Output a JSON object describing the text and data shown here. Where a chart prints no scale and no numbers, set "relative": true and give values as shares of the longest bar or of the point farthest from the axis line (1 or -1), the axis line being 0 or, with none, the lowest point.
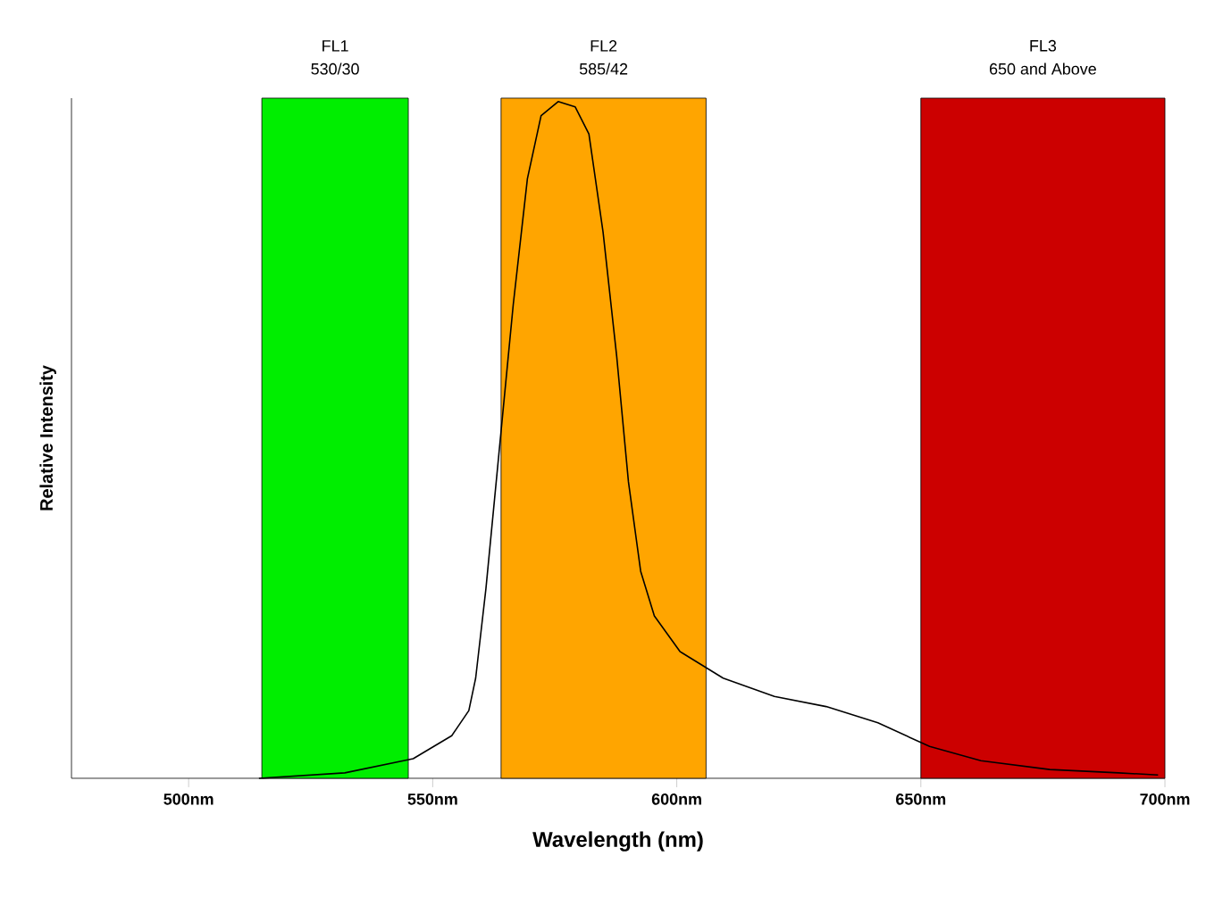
{
  "chart_data": {
    "type": "line",
    "relative": true,
    "xlabel": "Wavelength (nm)",
    "ylabel": "Relative Intensity",
    "xlim": [
      476,
      700
    ],
    "xticks": [
      {
        "value": 500,
        "label": "500nm"
      },
      {
        "value": 550,
        "label": "550nm"
      },
      {
        "value": 600,
        "label": "600nm"
      },
      {
        "value": 650,
        "label": "650nm"
      },
      {
        "value": 700,
        "label": "700nm"
      }
    ],
    "bands": [
      {
        "axis": "x",
        "from": 515,
        "to": 545,
        "label": "FL1",
        "color": "#00ee00"
      },
      {
        "axis": "x",
        "from": 564,
        "to": 606,
        "label": "FL2",
        "color": "#ffa500"
      },
      {
        "axis": "x",
        "from": 650,
        "to": 700,
        "label": "FL3",
        "color": "#cc0000"
      }
    ],
    "annotations": [
      "530/30",
      "585/42",
      "650 and Above"
    ],
    "series": [
      {
        "color": "#000000",
        "x": [
          514.4,
          532,
          546,
          553.9,
          557.4,
          558.8,
          560.9,
          563.7,
          566.5,
          569.4,
          572.2,
          575.7,
          579.2,
          582,
          584.9,
          587.7,
          590.1,
          592.6,
          595.4,
          600.7,
          609.5,
          620,
          630.6,
          641.2,
          651.8,
          662.3,
          676.4,
          690.5,
          698.6
        ],
        "values": [
          0,
          0.008,
          0.029,
          0.063,
          0.1,
          0.148,
          0.28,
          0.49,
          0.7,
          0.886,
          0.979,
          1,
          0.992,
          0.952,
          0.807,
          0.623,
          0.438,
          0.306,
          0.24,
          0.187,
          0.148,
          0.121,
          0.106,
          0.082,
          0.047,
          0.026,
          0.013,
          0.008,
          0.005
        ]
      }
    ]
  }
}
